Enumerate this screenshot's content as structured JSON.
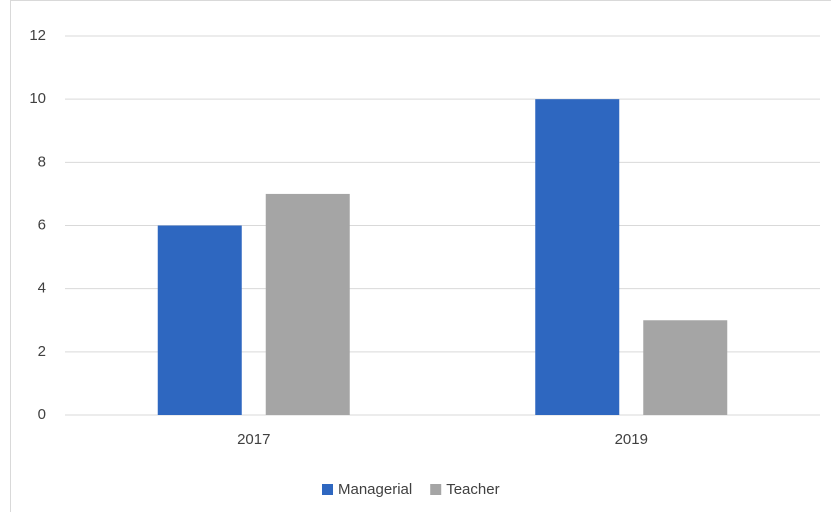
{
  "chart_data": {
    "type": "bar",
    "categories": [
      "2017",
      "2019"
    ],
    "series": [
      {
        "name": "Managerial",
        "color": "#2e67c0",
        "values": [
          6,
          10
        ]
      },
      {
        "name": "Teacher",
        "color": "#a5a5a5",
        "values": [
          7,
          3
        ]
      }
    ],
    "ylim": [
      0,
      12
    ],
    "yticks": [
      0,
      2,
      4,
      6,
      8,
      10,
      12
    ],
    "grid": true,
    "legend": "bottom"
  }
}
